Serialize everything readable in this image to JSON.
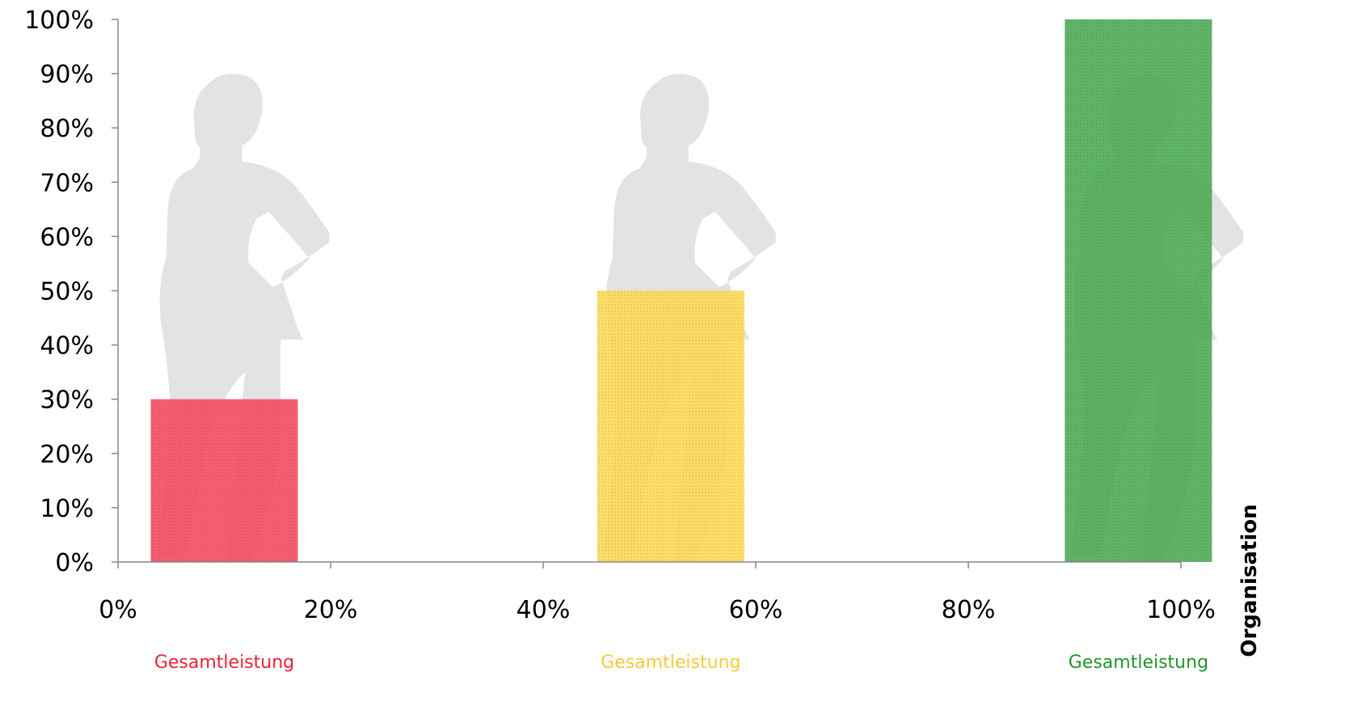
{
  "chart_data": {
    "type": "bar",
    "categories": [
      "Gesamtleistung",
      "Gesamtleistung",
      "Gesamtleistung"
    ],
    "x_positions": [
      10,
      52,
      96
    ],
    "values": [
      30,
      50,
      100
    ],
    "bar_colors": [
      "#f0203a",
      "#fcd02e",
      "#22962a"
    ],
    "x_ticks": [
      "0%",
      "20%",
      "40%",
      "60%",
      "80%",
      "100%"
    ],
    "y_ticks": [
      "0%",
      "10%",
      "20%",
      "30%",
      "40%",
      "50%",
      "60%",
      "70%",
      "80%",
      "90%",
      "100%"
    ],
    "xlim": [
      0,
      100
    ],
    "ylim": [
      0,
      100
    ],
    "side_label": "Organisation",
    "silhouette_icon": "woman-silhouette",
    "grid": false
  }
}
